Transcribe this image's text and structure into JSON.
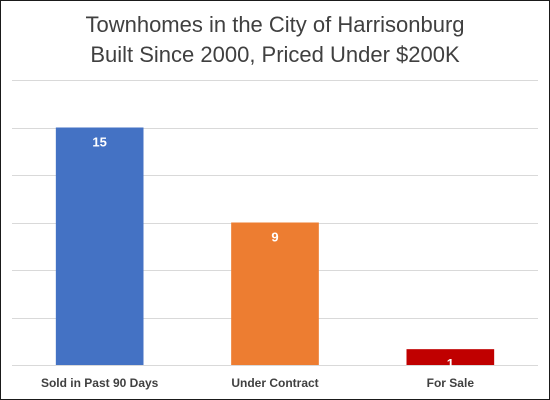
{
  "chart_data": {
    "type": "bar",
    "title": [
      "Townhomes in the City of Harrisonburg",
      "Built Since 2000, Priced Under $200K"
    ],
    "categories": [
      "Sold in Past 90 Days",
      "Under Contract",
      "For Sale"
    ],
    "values": [
      15,
      9,
      1
    ],
    "colors": [
      "#4472c4",
      "#ed7d31",
      "#c00000"
    ],
    "ylim": [
      0,
      18
    ],
    "grid": true,
    "xlabel": "",
    "ylabel": ""
  }
}
